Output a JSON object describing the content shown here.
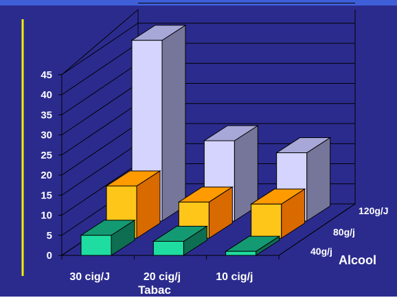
{
  "colors": {
    "background": "#2B2B8E",
    "frame_top": "#3F5FD9",
    "accent_line": "#F3F000",
    "grid": "#000000",
    "text": "#FFFFFF",
    "series": {
      "40g/j": {
        "front": "#1FDDA0",
        "top": "#149A72",
        "side": "#0E6E52"
      },
      "80g/j": {
        "front": "#FFC61A",
        "top": "#FF9A00",
        "side": "#D86A00"
      },
      "120g/J": {
        "front": "#D4D4FF",
        "top": "#A7A7D8",
        "side": "#76769A"
      }
    }
  },
  "chart_data": {
    "type": "bar",
    "subtype": "3d-grouped",
    "xlabel": "Tabac",
    "zlabel": "Alcool",
    "categories": [
      "30 cig/J",
      "20 cig/j",
      "10 cig/j"
    ],
    "series": [
      {
        "name": "40g/j",
        "values": [
          5,
          3.5,
          1
        ]
      },
      {
        "name": "80g/j",
        "values": [
          13,
          9,
          8.5
        ]
      },
      {
        "name": "120g/J",
        "values": [
          45,
          20,
          17
        ]
      }
    ],
    "yticks": [
      "0",
      "5",
      "10",
      "15",
      "20",
      "25",
      "30",
      "35",
      "40",
      "45"
    ],
    "ylim": [
      0,
      45
    ],
    "grid": true
  }
}
